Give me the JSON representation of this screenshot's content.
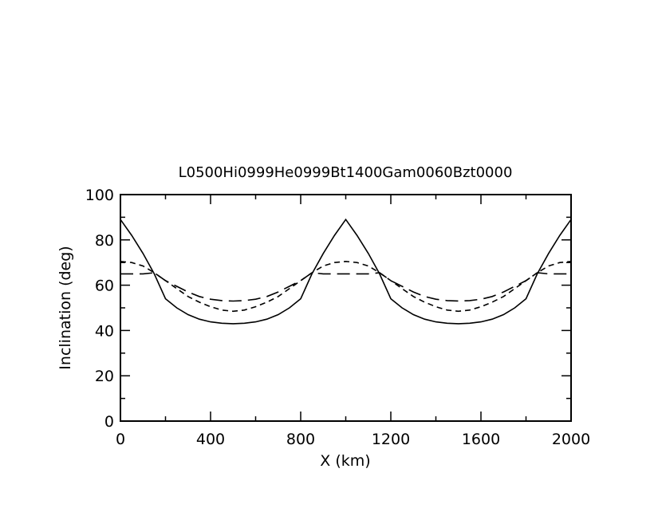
{
  "chart_data": {
    "type": "line",
    "title": "L0500Hi0999He0999Bt1400Gam0060Bzt0000",
    "xlabel": "X (km)",
    "ylabel": "Inclination (deg)",
    "xlim": [
      0,
      2000
    ],
    "ylim": [
      0,
      100
    ],
    "xticks": [
      "0",
      "400",
      "800",
      "1200",
      "1600",
      "2000"
    ],
    "yticks": [
      "0",
      "20",
      "40",
      "60",
      "80",
      "100"
    ],
    "grid": false,
    "x": [
      0,
      50,
      100,
      150,
      200,
      250,
      300,
      350,
      400,
      450,
      500,
      550,
      600,
      650,
      700,
      750,
      800,
      850,
      900,
      950,
      1000,
      1050,
      1100,
      1150,
      1200,
      1250,
      1300,
      1350,
      1400,
      1450,
      1500,
      1550,
      1600,
      1650,
      1700,
      1750,
      1800,
      1850,
      1900,
      1950,
      2000
    ],
    "series": [
      {
        "style": "solid",
        "values": [
          89,
          82,
          74,
          65,
          54,
          50,
          47,
          45,
          43.8,
          43.2,
          43,
          43.2,
          43.8,
          45,
          47,
          50,
          54,
          65,
          74,
          82,
          89,
          82,
          74,
          65,
          54,
          50,
          47,
          45,
          43.8,
          43.2,
          43,
          43.2,
          43.8,
          45,
          47,
          50,
          54,
          65,
          74,
          82,
          89
        ]
      },
      {
        "style": "short-dash",
        "values": [
          70.5,
          70,
          68.5,
          65.5,
          62,
          58.5,
          55,
          52.5,
          50.5,
          49,
          48.5,
          49,
          50.5,
          52.5,
          55,
          58.5,
          62,
          65.5,
          68.5,
          70,
          70.5,
          70,
          68.5,
          65.5,
          62,
          58.5,
          55,
          52.5,
          50.5,
          49,
          48.5,
          49,
          50.5,
          52.5,
          55,
          58.5,
          62,
          65.5,
          68.5,
          70,
          70.5
        ]
      },
      {
        "style": "long-dash",
        "values": [
          65,
          65,
          65,
          65.5,
          62,
          59.5,
          57,
          55,
          53.8,
          53.2,
          53,
          53.2,
          53.8,
          55,
          57,
          59.5,
          62,
          65.5,
          65,
          65,
          65,
          65,
          65,
          65.5,
          62,
          59.5,
          57,
          55,
          53.8,
          53.2,
          53,
          53.2,
          53.8,
          55,
          57,
          59.5,
          62,
          65.5,
          65,
          65,
          65
        ]
      }
    ],
    "colors": {
      "line": "#000000",
      "background": "#ffffff"
    }
  }
}
